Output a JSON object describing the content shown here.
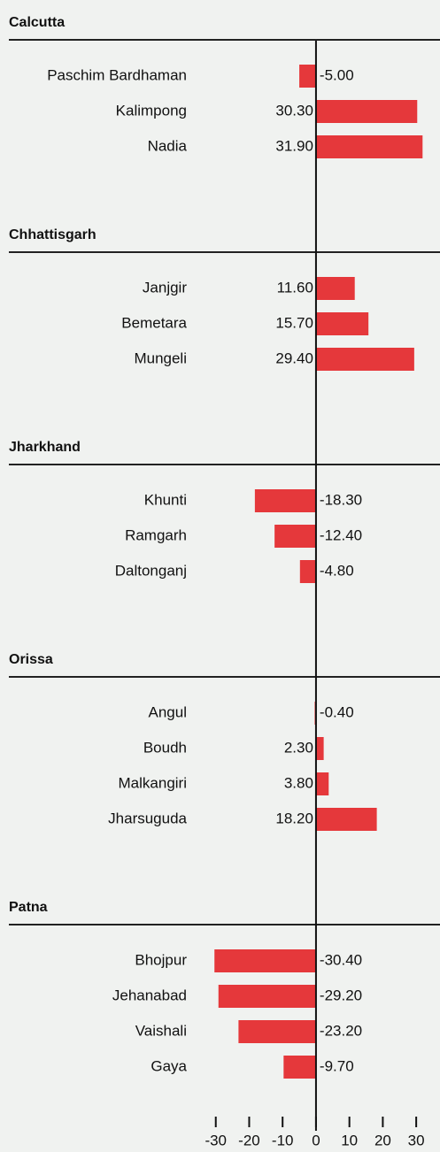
{
  "chart_data": {
    "type": "bar",
    "color": "#e5383b",
    "xlim": [
      -40,
      35
    ],
    "xticks": [
      -30,
      -20,
      -10,
      0,
      10,
      20,
      30
    ],
    "groups": [
      {
        "name": "Calcutta",
        "categories": [
          "Paschim Bardhaman",
          "Kalimpong",
          "Nadia"
        ],
        "values": [
          -5,
          30.3,
          31.9
        ],
        "value_labels": [
          "-5.00",
          "30.30",
          "31.90"
        ]
      },
      {
        "name": "Chhattisgarh",
        "categories": [
          "Janjgir",
          "Bemetara",
          "Mungeli"
        ],
        "values": [
          11.6,
          15.7,
          29.4
        ],
        "value_labels": [
          "11.60",
          "15.70",
          "29.40"
        ]
      },
      {
        "name": "Jharkhand",
        "categories": [
          "Khunti",
          "Ramgarh",
          "Daltonganj"
        ],
        "values": [
          -18.3,
          -12.4,
          -4.8
        ],
        "value_labels": [
          "-18.30",
          "-12.40",
          "-4.80"
        ]
      },
      {
        "name": "Orissa",
        "categories": [
          "Angul",
          "Boudh",
          "Malkangiri",
          "Jharsuguda"
        ],
        "values": [
          -0.4,
          2.3,
          3.8,
          18.2
        ],
        "value_labels": [
          "-0.40",
          "2.30",
          "3.80",
          "18.20"
        ]
      },
      {
        "name": "Patna",
        "categories": [
          "Bhojpur",
          "Jehanabad",
          "Vaishali",
          "Gaya"
        ],
        "values": [
          -30.4,
          -29.2,
          -23.2,
          -9.7
        ],
        "value_labels": [
          "-30.40",
          "-29.20",
          "-23.20",
          "-9.70"
        ]
      }
    ]
  }
}
